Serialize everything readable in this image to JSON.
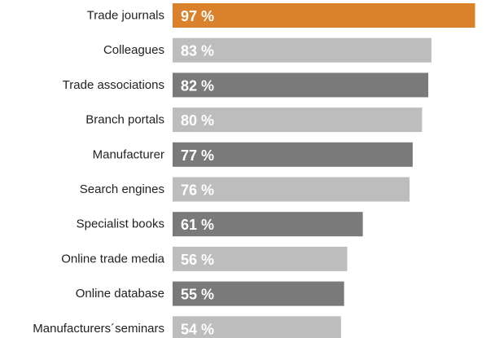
{
  "chart_data": {
    "type": "bar",
    "orientation": "horizontal",
    "categories": [
      "Trade journals",
      "Colleagues",
      "Trade associations",
      "Branch portals",
      "Manufacturer",
      "Search engines",
      "Specialist books",
      "Online trade media",
      "Online database",
      "Manufacturers´seminars"
    ],
    "values": [
      97,
      83,
      82,
      80,
      77,
      76,
      61,
      56,
      55,
      54
    ],
    "value_labels": [
      "97 %",
      "83 %",
      "82 %",
      "80 %",
      "77 %",
      "76 %",
      "61 %",
      "56 %",
      "55 %",
      "54 %"
    ],
    "xlim": [
      0,
      100
    ],
    "grid": false,
    "legend": "none",
    "title": "",
    "xlabel": "",
    "ylabel": ""
  },
  "colors": {
    "highlight": "#d9822b",
    "light": "#bdbdbd",
    "dark": "#7a7a7a",
    "bar_pattern": [
      "highlight",
      "light",
      "dark",
      "light",
      "dark",
      "light",
      "dark",
      "light",
      "dark",
      "light"
    ]
  }
}
